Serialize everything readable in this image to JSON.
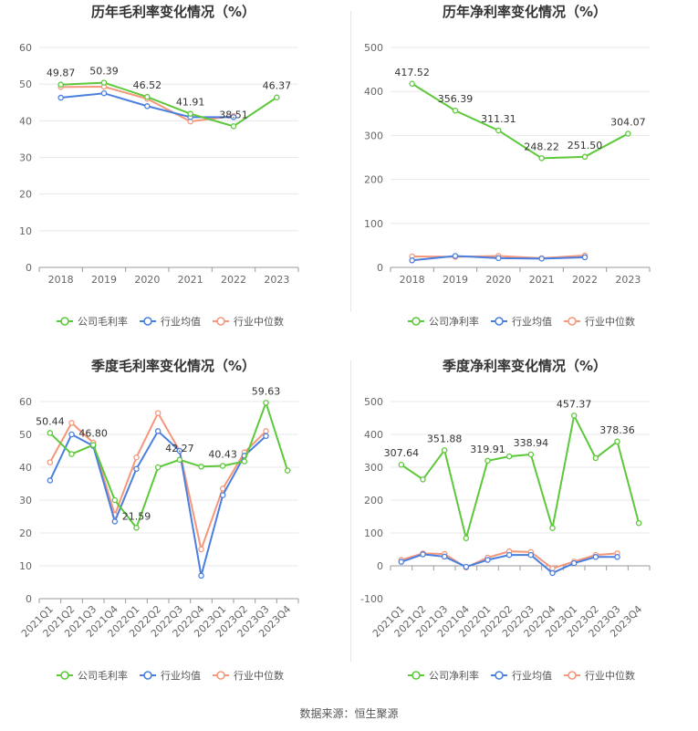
{
  "colors": {
    "company": "#5cc83a",
    "avg": "#4a7fe0",
    "median": "#f4977a",
    "grid": "#e8e8e8",
    "axis": "#999999"
  },
  "source": "数据来源：恒生聚源",
  "chart_data": [
    {
      "type": "line",
      "title": "历年毛利率变化情况（%）",
      "categories": [
        "2018",
        "2019",
        "2020",
        "2021",
        "2022",
        "2023"
      ],
      "ylim": [
        0,
        60
      ],
      "yticks": [
        0,
        10,
        20,
        30,
        40,
        50,
        60
      ],
      "series": [
        {
          "name": "公司毛利率",
          "values": [
            49.87,
            50.39,
            46.52,
            41.91,
            38.51,
            46.37
          ],
          "labels": [
            "49.87",
            "50.39",
            "46.52",
            "41.91",
            "38.51",
            "46.37"
          ]
        },
        {
          "name": "行业均值",
          "values": [
            46.3,
            47.5,
            44.0,
            41.0,
            41.0,
            null
          ]
        },
        {
          "name": "行业中位数",
          "values": [
            49.2,
            49.3,
            46.0,
            39.8,
            41.3,
            null
          ]
        }
      ],
      "legend": "bottom",
      "grid": true
    },
    {
      "type": "line",
      "title": "历年净利率变化情况（%）",
      "categories": [
        "2018",
        "2019",
        "2020",
        "2021",
        "2022",
        "2023"
      ],
      "ylim": [
        0,
        500
      ],
      "yticks": [
        0,
        100,
        200,
        300,
        400,
        500
      ],
      "series": [
        {
          "name": "公司净利率",
          "values": [
            417.52,
            356.39,
            311.31,
            248.22,
            251.5,
            304.07
          ],
          "labels": [
            "417.52",
            "356.39",
            "311.31",
            "248.22",
            "251.50",
            "304.07"
          ]
        },
        {
          "name": "行业均值",
          "values": [
            16,
            26,
            21,
            20,
            23,
            null
          ]
        },
        {
          "name": "行业中位数",
          "values": [
            25,
            24,
            26,
            21,
            27,
            null
          ]
        }
      ],
      "legend": "bottom",
      "grid": true
    },
    {
      "type": "line",
      "title": "季度毛利率变化情况（%）",
      "categories": [
        "2021Q1",
        "2021Q2",
        "2021Q3",
        "2021Q4",
        "2022Q1",
        "2022Q2",
        "2022Q3",
        "2022Q4",
        "2023Q1",
        "2023Q2",
        "2023Q3",
        "2023Q4"
      ],
      "ylim": [
        0,
        60
      ],
      "yticks": [
        0,
        10,
        20,
        30,
        40,
        50,
        60
      ],
      "series": [
        {
          "name": "公司毛利率",
          "values": [
            50.44,
            44.0,
            46.8,
            30.0,
            21.59,
            40.0,
            42.27,
            40.2,
            40.43,
            41.8,
            59.63,
            39.0
          ],
          "labels": [
            "50.44",
            "",
            "46.80",
            "",
            "21.59",
            "",
            "42.27",
            "",
            "40.43",
            "",
            "59.63",
            ""
          ]
        },
        {
          "name": "行业均值",
          "values": [
            36.0,
            50.0,
            46.5,
            23.5,
            39.5,
            51.0,
            45.0,
            7.0,
            31.5,
            43.5,
            49.5,
            null
          ]
        },
        {
          "name": "行业中位数",
          "values": [
            41.5,
            53.5,
            47.5,
            25.5,
            43.0,
            56.5,
            45.0,
            15.0,
            33.5,
            44.5,
            51.0,
            null
          ]
        }
      ],
      "legend": "bottom",
      "grid": true
    },
    {
      "type": "line",
      "title": "季度净利率变化情况（%）",
      "categories": [
        "2021Q1",
        "2021Q2",
        "2021Q3",
        "2021Q4",
        "2022Q1",
        "2022Q2",
        "2022Q3",
        "2022Q4",
        "2023Q1",
        "2023Q2",
        "2023Q3",
        "2023Q4"
      ],
      "ylim": [
        -100,
        500
      ],
      "yticks": [
        -100,
        0,
        100,
        200,
        300,
        400,
        500
      ],
      "series": [
        {
          "name": "公司净利率",
          "values": [
            307.64,
            263.0,
            351.88,
            84.0,
            319.91,
            333.0,
            338.94,
            115.0,
            457.37,
            328.0,
            378.36,
            130.0
          ],
          "labels": [
            "307.64",
            "",
            "351.88",
            "",
            "319.91",
            "",
            "338.94",
            "",
            "457.37",
            "",
            "378.36",
            ""
          ]
        },
        {
          "name": "行业均值",
          "values": [
            12,
            35,
            28,
            -3,
            18,
            33,
            33,
            -22,
            8,
            27,
            27,
            null
          ]
        },
        {
          "name": "行业中位数",
          "values": [
            18,
            38,
            36,
            -5,
            25,
            44,
            42,
            -8,
            13,
            33,
            38,
            null
          ]
        }
      ],
      "legend": "bottom",
      "grid": true
    }
  ]
}
